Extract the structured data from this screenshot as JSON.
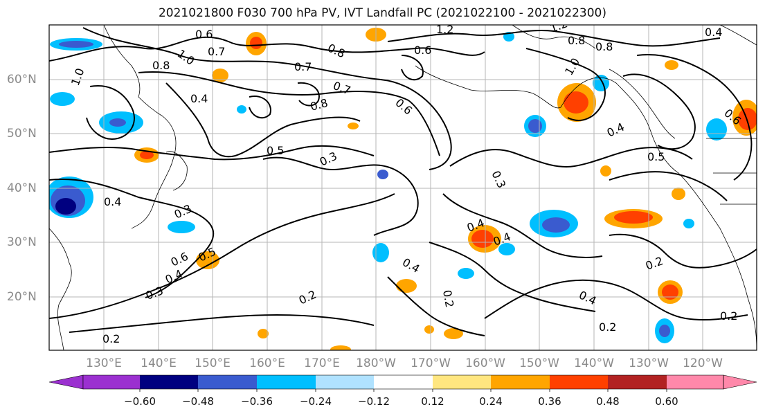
{
  "title": "2021021800 F030 700 hPa PV, IVT Landfall PC (2021022100 - 2021022300)",
  "latitude_labels": [
    "60°N",
    "50°N",
    "40°N",
    "30°N",
    "20°N"
  ],
  "longitude_labels": [
    "130°E",
    "140°E",
    "150°E",
    "160°E",
    "170°E",
    "180°W",
    "170°W",
    "160°W",
    "150°W",
    "140°W",
    "130°W",
    "120°W"
  ],
  "contour_labels": [
    "0.6",
    "1.0",
    "0.7",
    "0.8",
    "0.4",
    "0.5",
    "0.3",
    "0.2",
    "1.2",
    "0.6",
    "0.8",
    "0.3"
  ],
  "colorbar": {
    "ticks": [
      "−0.60",
      "−0.48",
      "−0.36",
      "−0.24",
      "−0.12",
      "0.12",
      "0.24",
      "0.36",
      "0.48",
      "0.60"
    ],
    "colors": [
      "#9b30d0",
      "#000080",
      "#3a5bcf",
      "#00bfff",
      "#b0e2ff",
      "#ffffff",
      "#ffe680",
      "#ffa500",
      "#ff4000",
      "#b22222",
      "#ff88aa"
    ]
  }
}
